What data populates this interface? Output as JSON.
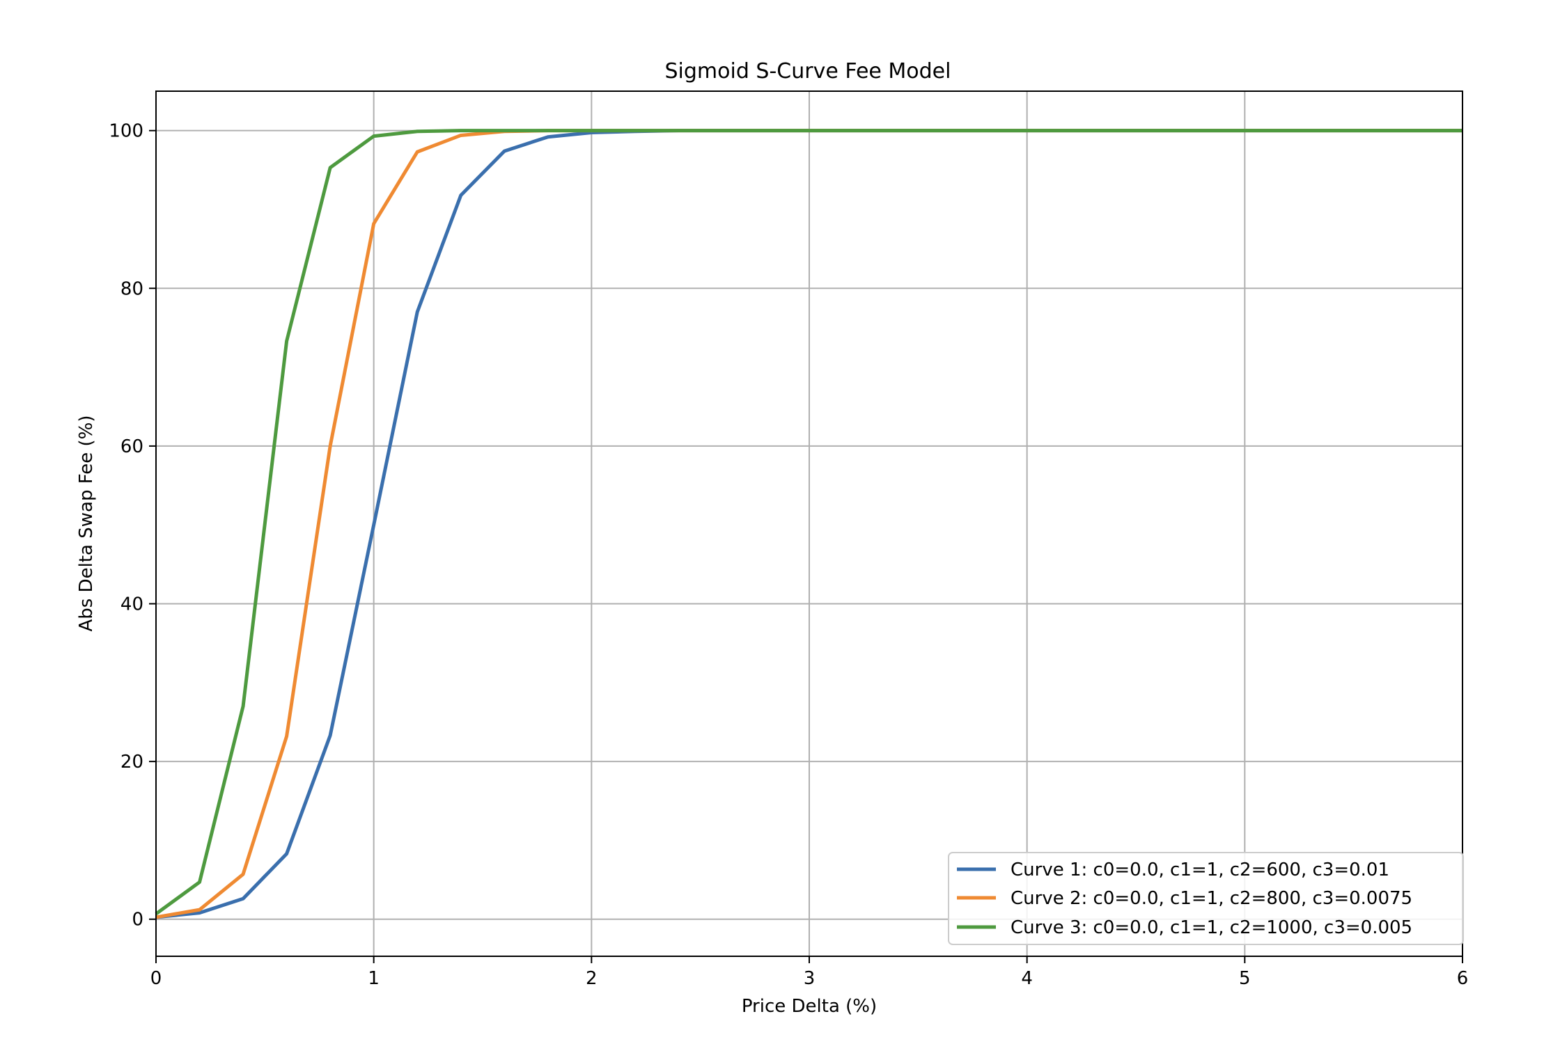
{
  "chart_data": {
    "type": "line",
    "title": "Sigmoid S-Curve Fee Model",
    "xlabel": "Price Delta (%)",
    "ylabel": "Abs Delta Swap Fee (%)",
    "xlim": [
      0,
      6
    ],
    "ylim": [
      -4.7,
      105
    ],
    "xticks": [
      0,
      1,
      2,
      3,
      4,
      5,
      6
    ],
    "yticks": [
      0,
      20,
      40,
      60,
      80,
      100
    ],
    "grid": true,
    "legend_position": "lower-right",
    "x": [
      0,
      0.2,
      0.4,
      0.6,
      0.8,
      1.0,
      1.2,
      1.4,
      1.6,
      1.8,
      2.0,
      2.2,
      2.4,
      2.6,
      2.8,
      3.0,
      3.2,
      3.4,
      3.6,
      3.8,
      4.0,
      4.2,
      4.4,
      4.6,
      4.8,
      5.0,
      5.2,
      5.4,
      5.6,
      5.8,
      6.0
    ],
    "series": [
      {
        "name": "Curve 1: c0=0.0, c1=1, c2=600, c3=0.01",
        "color": "#3a6fad",
        "values": [
          0.25,
          0.8,
          2.6,
          8.3,
          23.3,
          50.0,
          77.0,
          91.8,
          97.4,
          99.2,
          99.75,
          99.9,
          100,
          100,
          100,
          100,
          100,
          100,
          100,
          100,
          100,
          100,
          100,
          100,
          100,
          100,
          100,
          100,
          100,
          100,
          100
        ]
      },
      {
        "name": "Curve 2: c0=0.0, c1=1, c2=800, c3=0.0075",
        "color": "#ef8a32",
        "values": [
          0.25,
          1.2,
          5.7,
          23.2,
          60.0,
          88.2,
          97.3,
          99.4,
          99.9,
          100,
          100,
          100,
          100,
          100,
          100,
          100,
          100,
          100,
          100,
          100,
          100,
          100,
          100,
          100,
          100,
          100,
          100,
          100,
          100,
          100,
          100
        ]
      },
      {
        "name": "Curve 3: c0=0.0, c1=1, c2=1000, c3=0.005",
        "color": "#4e9a3f",
        "values": [
          0.67,
          4.7,
          27.0,
          73.3,
          95.3,
          99.3,
          99.9,
          100,
          100,
          100,
          100,
          100,
          100,
          100,
          100,
          100,
          100,
          100,
          100,
          100,
          100,
          100,
          100,
          100,
          100,
          100,
          100,
          100,
          100,
          100,
          100
        ]
      }
    ]
  }
}
